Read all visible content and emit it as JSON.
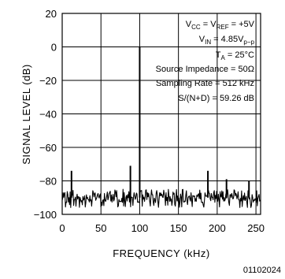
{
  "chart_data": {
    "type": "line",
    "title": "",
    "xlabel": "FREQUENCY (kHz)",
    "ylabel": "SIGNAL LEVEL (dB)",
    "xlim": [
      0,
      256
    ],
    "ylim": [
      -100,
      20
    ],
    "xticks": [
      0,
      50,
      100,
      150,
      200,
      250
    ],
    "yticks": [
      20,
      0,
      -20,
      -40,
      -60,
      -80,
      -100
    ],
    "xtick_labels": [
      "0",
      "50",
      "100",
      "150",
      "200",
      "250"
    ],
    "ytick_labels": [
      "20",
      "0",
      "−20",
      "−40",
      "−60",
      "−80",
      "−100"
    ],
    "grid": true,
    "noise_floor_db": -90,
    "noise_band_db": [
      -96,
      -85
    ],
    "series": [
      {
        "values": [
          {
            "x": 12,
            "y": -74
          },
          {
            "x": 88,
            "y": -71
          },
          {
            "x": 100,
            "y": 0
          },
          {
            "x": 188,
            "y": -74
          },
          {
            "x": 212,
            "y": -79
          },
          {
            "x": 241,
            "y": -80
          }
        ]
      }
    ],
    "annotations": {
      "l1_pre": "V",
      "l1_s1": "CC",
      "l1_mid": " = V",
      "l1_s2": "REF",
      "l1_post": " = +5V",
      "l2_pre": "V",
      "l2_s1": "IN",
      "l2_mid": " = 4.85V",
      "l2_s2": "p−p",
      "l3_pre": "T",
      "l3_s1": "A",
      "l3_mid": " = 25°C",
      "l4": "Source Impedance = 50Ω",
      "l5": "Sampling Rate = 512 kHz",
      "l6": "S/(N+D) = 59.26 dB"
    }
  },
  "footer_code": "01102024"
}
